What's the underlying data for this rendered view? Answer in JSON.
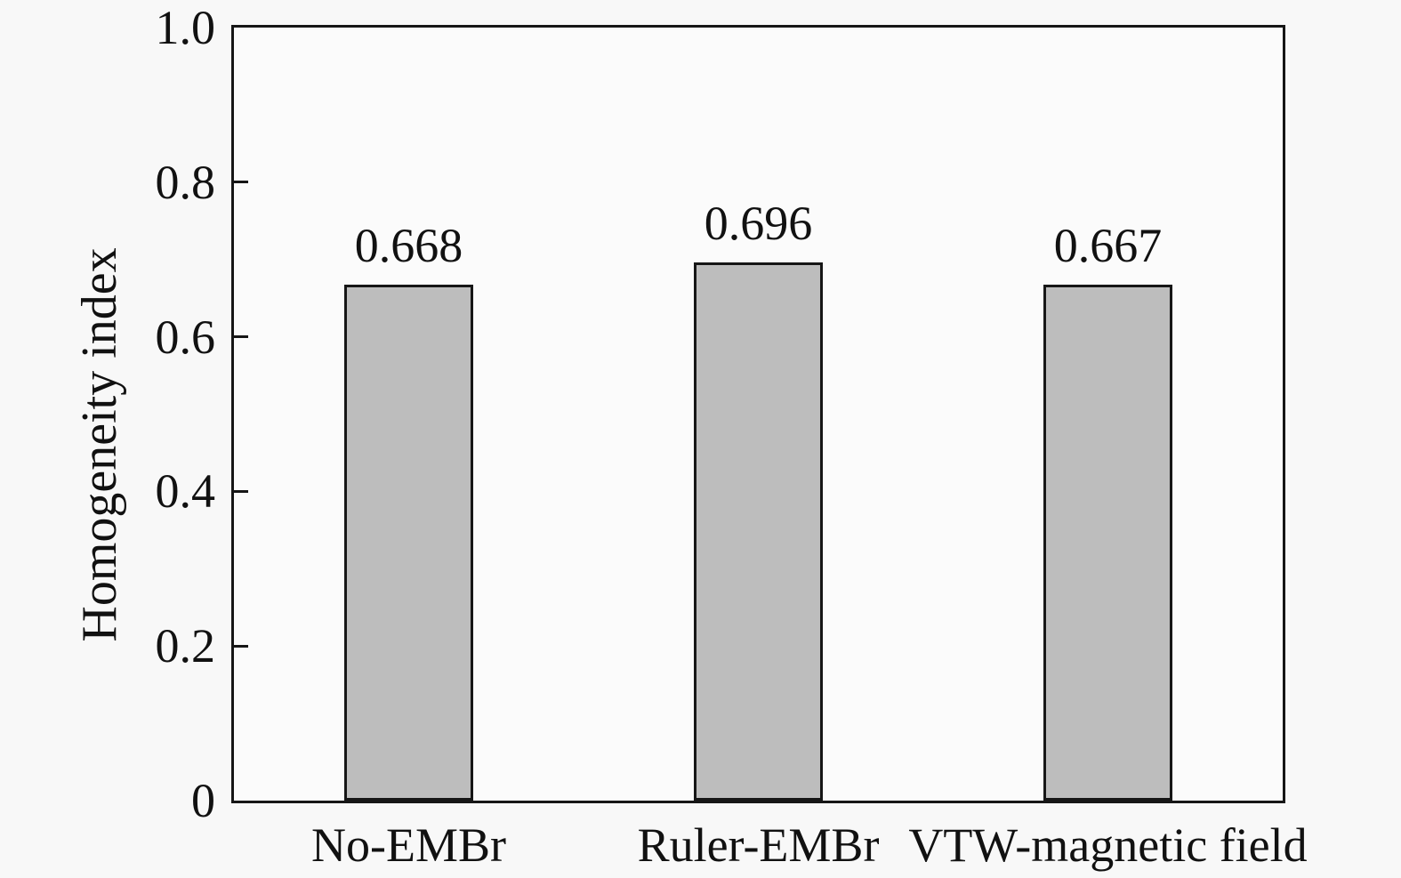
{
  "chart_data": {
    "type": "bar",
    "categories": [
      "No-EMBr",
      "Ruler-EMBr",
      "VTW-magnetic field"
    ],
    "values": [
      0.668,
      0.696,
      0.667
    ],
    "bar_labels": [
      "0.668",
      "0.696",
      "0.667"
    ],
    "title": "",
    "xlabel": "",
    "ylabel": "Homogeneity index",
    "ylim": [
      0,
      1.0
    ],
    "yticks": [
      0,
      0.2,
      0.4,
      0.6,
      0.8,
      1.0
    ],
    "ytick_labels": [
      "0",
      "0.2",
      "0.4",
      "0.6",
      "0.8",
      "1.0"
    ],
    "grid": false,
    "legend": false,
    "colors": {
      "bar_fill": "#bdbdbd",
      "bar_edge": "#161616",
      "axis": "#161616",
      "text": "#111111",
      "page_background": "#f8f8f8",
      "plot_background": "#fbfbfb"
    }
  }
}
